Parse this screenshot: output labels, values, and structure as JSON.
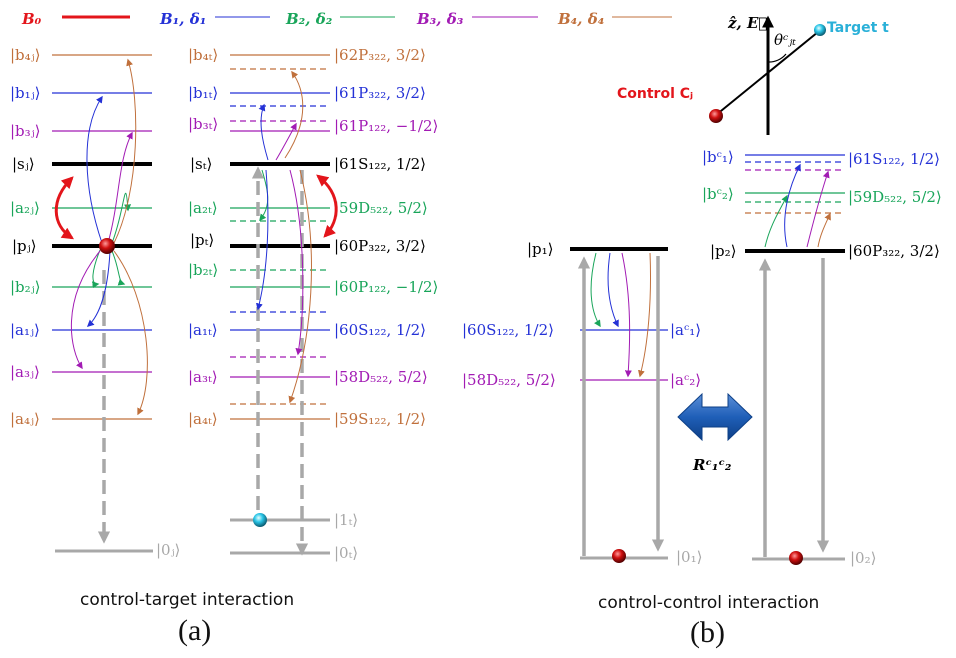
{
  "colors": {
    "B0": "#e3151b",
    "B1": "#2431d6",
    "B2": "#19a55a",
    "B3": "#a21bb4",
    "B4": "#c0703c",
    "black": "#000000",
    "grey": "#a8a8a8",
    "ground_text": "#a8a8a8"
  },
  "legend": {
    "b0": "B₀",
    "b1": "B₁, δ₁",
    "b2": "B₂, δ₂",
    "b3": "B₃, δ₃",
    "b4": "B₄, δ₄"
  },
  "control_j": {
    "b4": "|b₄ⱼ⟩",
    "b1": "|b₁ⱼ⟩",
    "b3": "|b₃ⱼ⟩",
    "s": "|sⱼ⟩",
    "a2": "|a₂ⱼ⟩",
    "p": "|pⱼ⟩",
    "b2": "|b₂ⱼ⟩",
    "a1": "|a₁ⱼ⟩",
    "a3": "|a₃ⱼ⟩",
    "a4": "|a₄ⱼ⟩",
    "zero": "|0ⱼ⟩"
  },
  "target_t": {
    "b4": "|b₄ₜ⟩",
    "b1": "|b₁ₜ⟩",
    "b3": "|b₃ₜ⟩",
    "s": "|sₜ⟩",
    "a2": "|a₂ₜ⟩",
    "p": "|pₜ⟩",
    "b2": "|b₂ₜ⟩",
    "a1": "|a₁ₜ⟩",
    "a3": "|a₃ₜ⟩",
    "a4": "|a₄ₜ⟩",
    "one": "|1ₜ⟩",
    "zero": "|0ₜ⟩"
  },
  "states_t": {
    "b4": "|62P₃₂₂, 3/2⟩",
    "b1": "|61P₃₂₂, 3/2⟩",
    "b3": "|61P₁₂₂, −1/2⟩",
    "s": "|61S₁₂₂, 1/2⟩",
    "a2": "|59D₅₂₂, 5/2⟩",
    "p": "|60P₃₂₂, 3/2⟩",
    "b2": "|60P₁₂₂, −1/2⟩",
    "a1": "|60S₁₂₂, 1/2⟩",
    "a3": "|58D₅₂₂, 5/2⟩",
    "a4": "|59S₁₂₂, 1/2⟩"
  },
  "panel_b": {
    "p1": "|p₁⟩",
    "ac1_state": "|60S₁₂₂, 1/2⟩",
    "ac1": "|aᶜ₁⟩",
    "ac2_state": "|58D₅₂₂, 5/2⟩",
    "ac2": "|aᶜ₂⟩",
    "zero1": "|0₁⟩",
    "bc1": "|bᶜ₁⟩",
    "bc1_state": "|61S₁₂₂, 1/2⟩",
    "bc2": "|bᶜ₂⟩",
    "bc2_state": "|59D₅₂₂, 5/2⟩",
    "p2": "|p₂⟩",
    "p2_state": "|60P₃₂₂, 3/2⟩",
    "zero2": "|0₂⟩",
    "axis": "ẑ, E⃗",
    "angle": "θᶜⱼₜ",
    "target": "Target t",
    "control": "Control Cⱼ",
    "coupling": "Rᶜ₁ᶜ₂"
  },
  "captions": {
    "a_text": "control-target interaction",
    "a_panel": "(a)",
    "b_text": "control-control interaction",
    "b_panel": "(b)"
  }
}
